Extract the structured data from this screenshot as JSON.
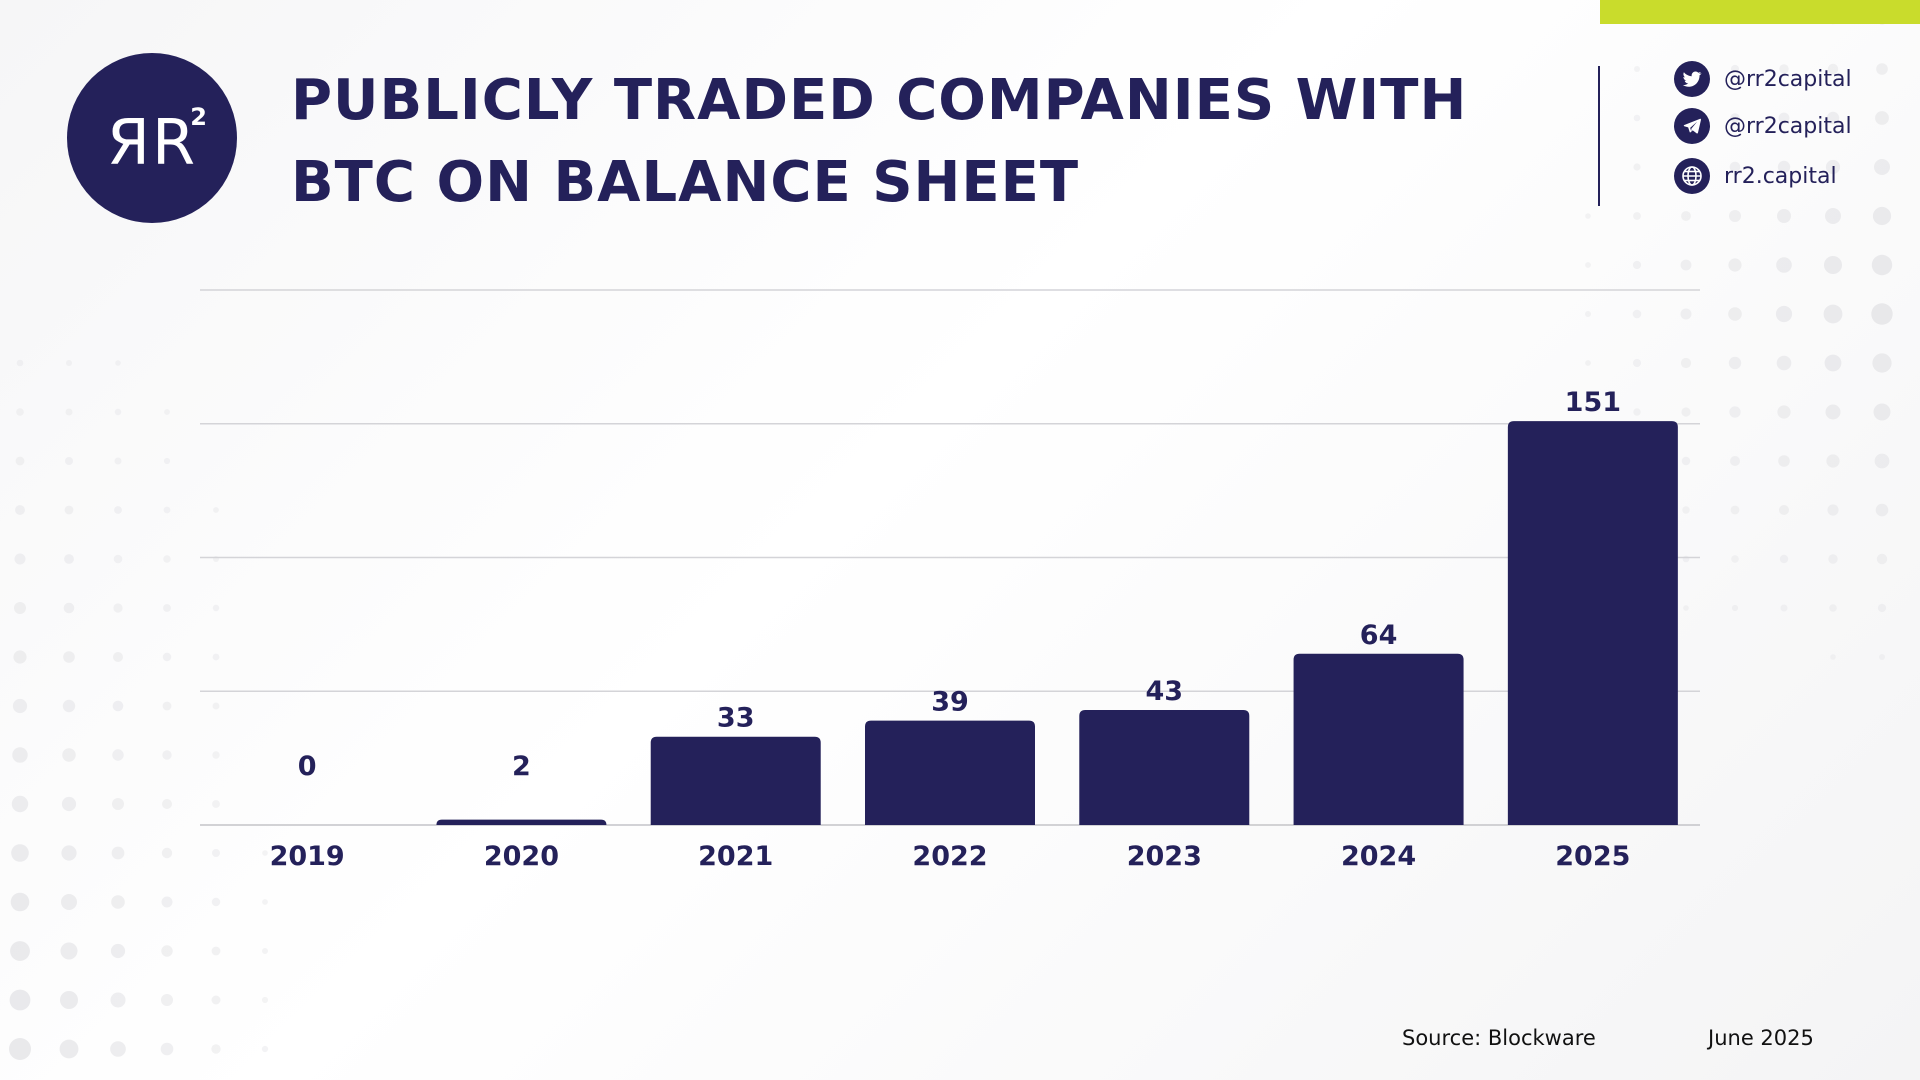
{
  "logo": {
    "text": "ЯR",
    "sup": "2"
  },
  "title_line1": "PUBLICLY TRADED COMPANIES WITH",
  "title_line2": "BTC ON BALANCE SHEET",
  "social": {
    "twitter": "@rr2capital",
    "telegram": "@rr2capital",
    "website": "rr2.capital"
  },
  "colors": {
    "navy": "#24215a",
    "accent": "#c9dc2c",
    "grid": "#d4d4d8"
  },
  "chart_data": {
    "type": "bar",
    "title": "PUBLICLY TRADED COMPANIES WITH BTC ON BALANCE SHEET",
    "categories": [
      "2019",
      "2020",
      "2021",
      "2022",
      "2023",
      "2024",
      "2025"
    ],
    "values": [
      0,
      2,
      33,
      39,
      43,
      64,
      151
    ],
    "ylim": [
      0,
      200
    ],
    "gridlines": [
      50,
      100,
      150,
      200
    ],
    "xlabel": "",
    "ylabel": "",
    "data_labels": true,
    "grid": true
  },
  "footer": {
    "source": "Source: Blockware",
    "date": "June  2025"
  }
}
